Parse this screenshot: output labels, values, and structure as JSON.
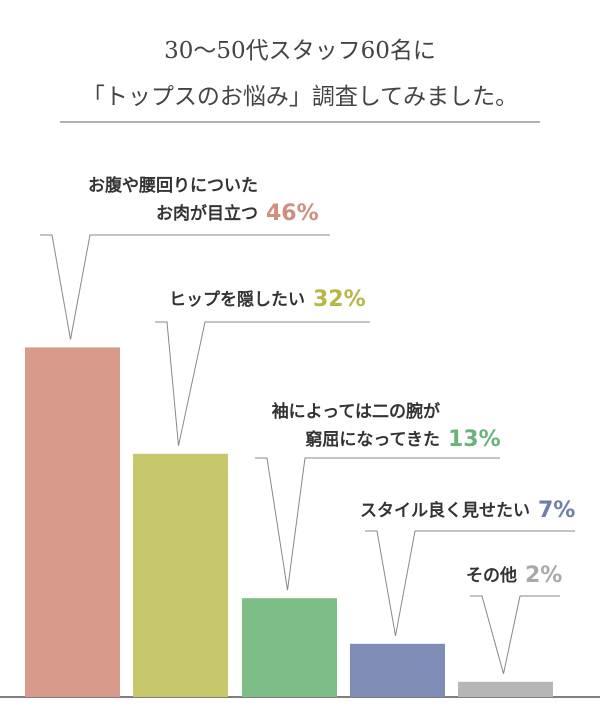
{
  "chart_data": {
    "type": "bar",
    "title": [
      "30〜50代スタッフ60名に",
      "「トップスのお悩み」調査してみました。"
    ],
    "categories": [
      [
        "お腹や腰回りについた",
        "お肉が目立つ"
      ],
      [
        "ヒップを隠したい"
      ],
      [
        "袖によっては二の腕が",
        "窮屈になってきた"
      ],
      [
        "スタイル良く見せたい"
      ],
      [
        "その他"
      ]
    ],
    "values": [
      46,
      32,
      13,
      7,
      2
    ],
    "value_labels": [
      "46%",
      "32%",
      "13%",
      "7%",
      "2%"
    ],
    "colors": [
      "#d89b8b",
      "#c6c86b",
      "#7dbd86",
      "#7f8db6",
      "#b6b6b6"
    ],
    "label_colors": [
      "#cf8f80",
      "#b5b845",
      "#6cb37a",
      "#6e7eaa",
      "#a9a9a9"
    ]
  }
}
